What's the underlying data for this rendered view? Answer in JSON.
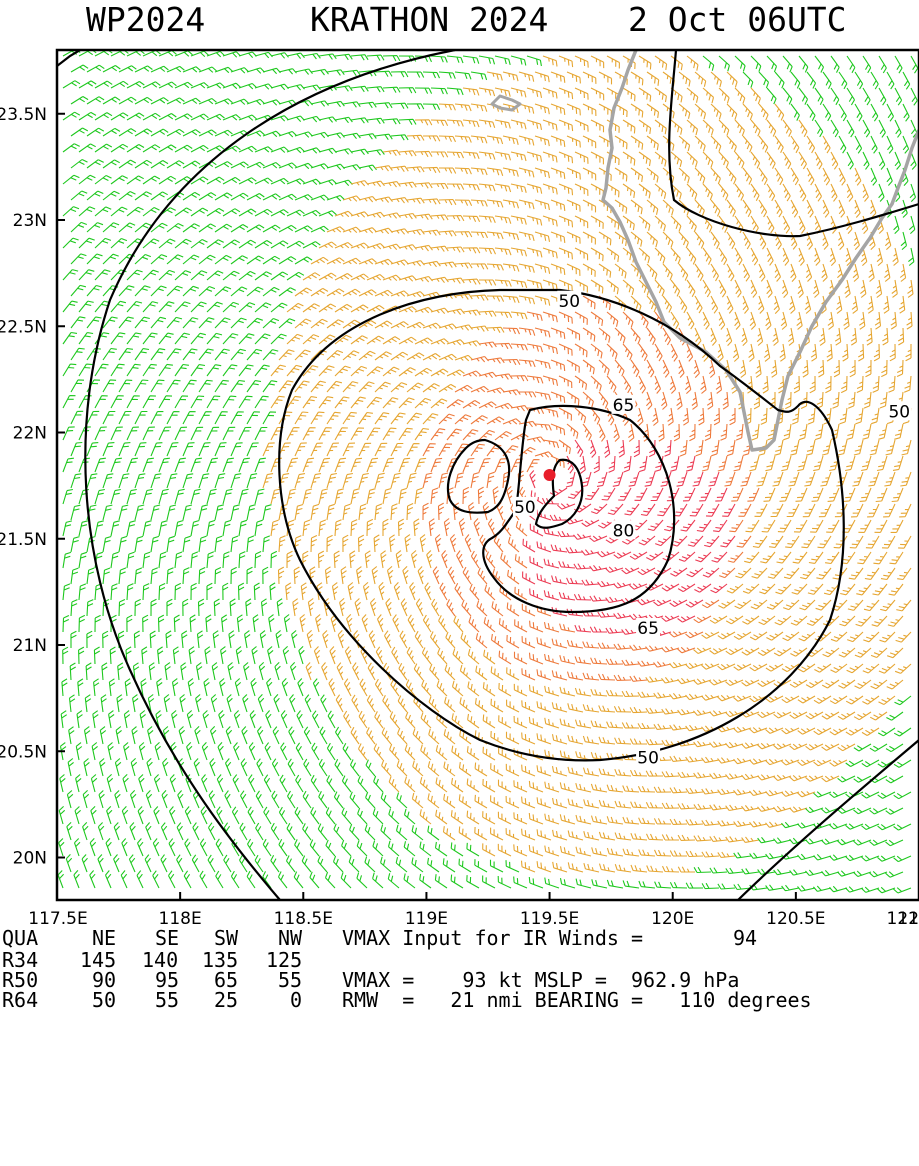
{
  "header": {
    "basin_id": "WP2024",
    "storm": "KRATHON 2024",
    "time": "2 Oct 06UTC"
  },
  "colors": {
    "wind_lt34": "#1ec81e",
    "wind_34_50": "#e6a632",
    "wind_50_64": "#ee7a3c",
    "wind_ge64": "#ec3c54",
    "coast": "#a5a5a5",
    "contour": "#000000",
    "center": "#e81e2a"
  },
  "chart_data": {
    "type": "contour-map",
    "title": "WP2024 KRATHON 2024 2 Oct 06UTC",
    "x_axis": {
      "unit": "longitude",
      "range": [
        117.5,
        121.0
      ],
      "ticks": [
        "117.5E",
        "118E",
        "118.5E",
        "119E",
        "119.5E",
        "120E",
        "120.5E",
        "121E",
        "121"
      ]
    },
    "y_axis": {
      "unit": "latitude",
      "range": [
        19.8,
        23.8
      ],
      "ticks": [
        "20N",
        "20.5N",
        "21N",
        "21.5N",
        "22N",
        "22.5N",
        "23N",
        "23.5N"
      ]
    },
    "storm_center": {
      "lon": 119.5,
      "lat": 21.8
    },
    "contour_levels_kt": [
      50,
      65,
      80
    ],
    "contour_labels": [
      {
        "text": "50",
        "lon": 119.58,
        "lat": 22.62
      },
      {
        "text": "50",
        "lon": 120.92,
        "lat": 22.1
      },
      {
        "text": "50",
        "lon": 119.9,
        "lat": 20.47
      },
      {
        "text": "50",
        "lon": 119.4,
        "lat": 21.65
      },
      {
        "text": "65",
        "lon": 119.8,
        "lat": 22.13
      },
      {
        "text": "65",
        "lon": 119.9,
        "lat": 21.08
      },
      {
        "text": "80",
        "lon": 119.8,
        "lat": 21.54
      }
    ]
  },
  "footer": {
    "quad_header": {
      "label": "QUA",
      "ne": "NE",
      "se": "SE",
      "sw": "SW",
      "nw": "NW"
    },
    "r34": {
      "label": "R34",
      "ne": "145",
      "se": "140",
      "sw": "135",
      "nw": "125"
    },
    "r50": {
      "label": "R50",
      "ne": "90",
      "se": "95",
      "sw": "65",
      "nw": "55"
    },
    "r64": {
      "label": "R64",
      "ne": "50",
      "se": "55",
      "sw": "25",
      "nw": "0"
    },
    "vmax_input_text": "VMAX Input for IR Winds =",
    "vmax_input_value": "94",
    "vmax_line": "VMAX =    93 kt MSLP =  962.9 hPa",
    "rmw_line": "RMW  =   21 nmi BEARING =   110 degrees"
  }
}
